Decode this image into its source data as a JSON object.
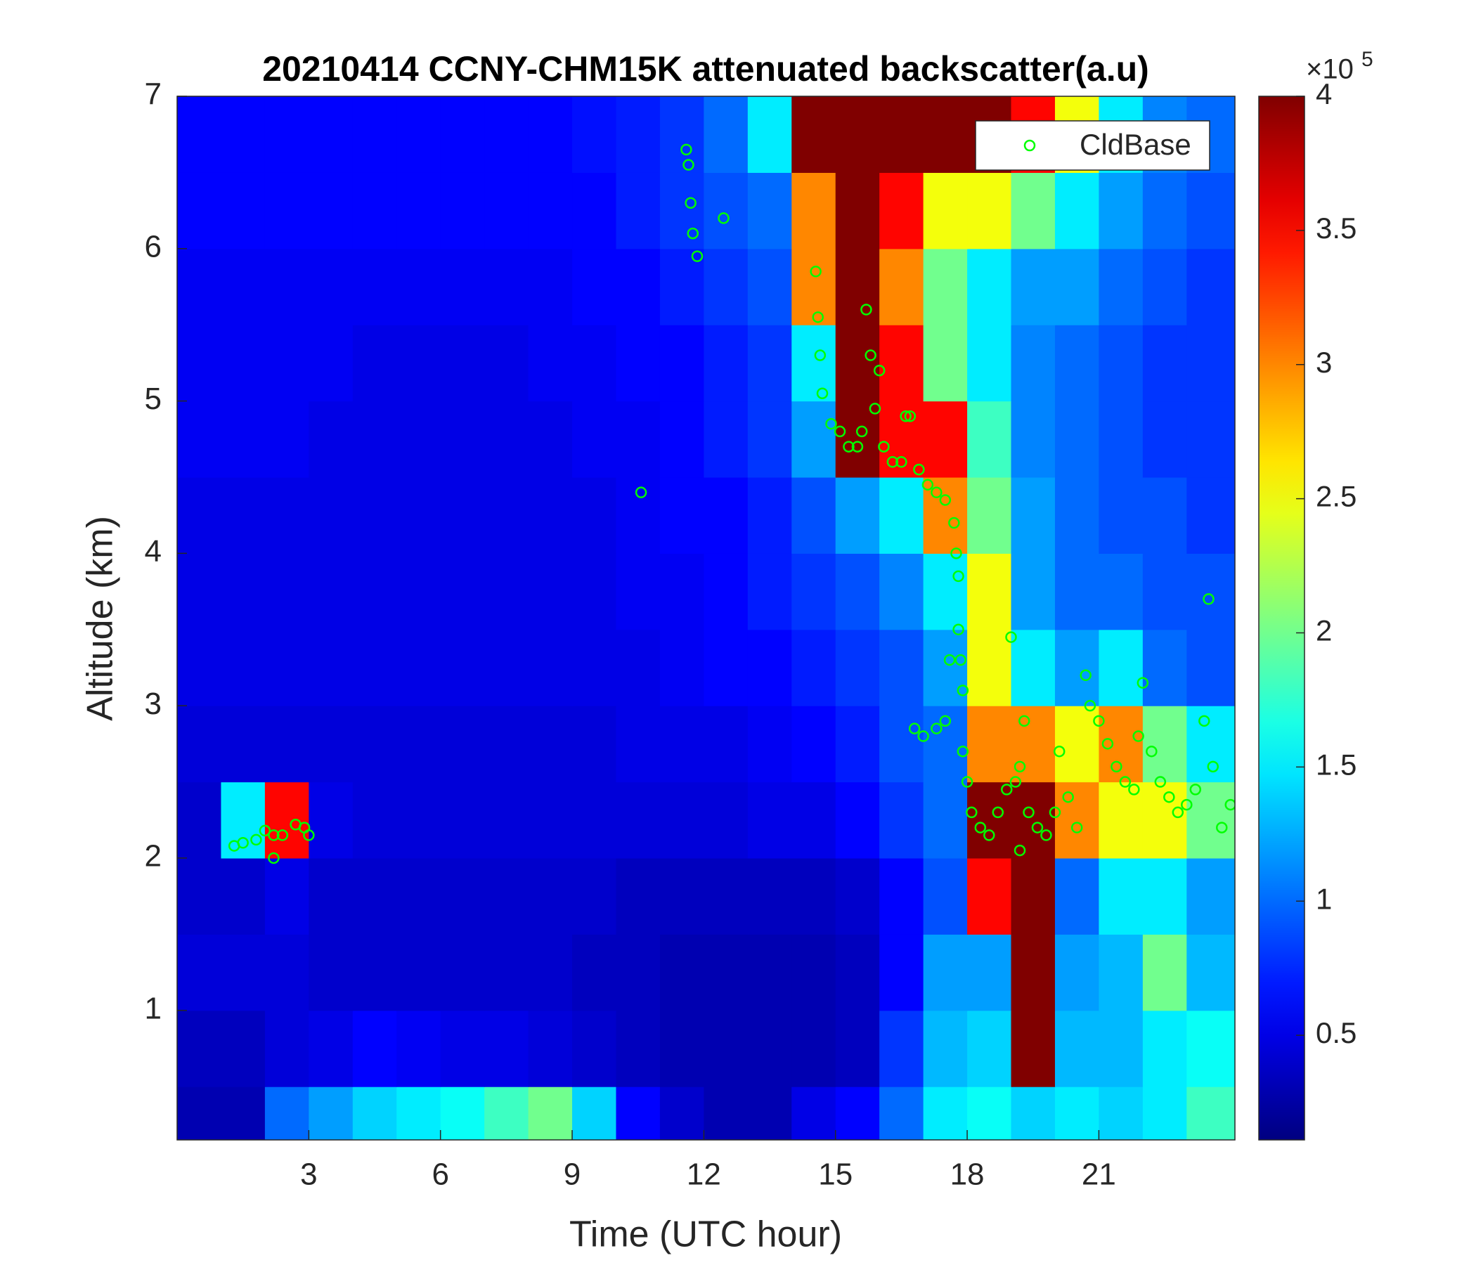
{
  "chart_data": {
    "type": "heatmap",
    "title": "20210414 CCNY-CHM15K attenuated backscatter(a.u)",
    "xlabel": "Time (UTC hour)",
    "ylabel": "Altitude (km)",
    "xlim": [
      0,
      24.1
    ],
    "ylim": [
      0.15,
      7
    ],
    "xticks": [
      3,
      6,
      9,
      12,
      15,
      18,
      21
    ],
    "yticks": [
      1,
      2,
      3,
      4,
      5,
      6,
      7
    ],
    "x": [
      0.5,
      1.5,
      2.5,
      3.5,
      4.5,
      5.5,
      6.5,
      7.5,
      8.5,
      9.5,
      10.5,
      11.5,
      12.5,
      13.5,
      14.5,
      15.5,
      16.5,
      17.5,
      18.5,
      19.5,
      20.5,
      21.5,
      22.5,
      23.5
    ],
    "y": [
      0.25,
      0.75,
      1.25,
      1.75,
      2.25,
      2.75,
      3.25,
      3.75,
      4.25,
      4.75,
      5.25,
      5.75,
      6.25,
      6.75
    ],
    "z": [
      [
        0.3,
        0.3,
        1.0,
        1.2,
        1.4,
        1.5,
        1.6,
        1.8,
        2.0,
        1.4,
        0.6,
        0.4,
        0.3,
        0.3,
        0.5,
        0.6,
        1.0,
        1.5,
        1.6,
        1.4,
        1.5,
        1.4,
        1.5,
        1.8
      ],
      [
        0.35,
        0.35,
        0.45,
        0.5,
        0.6,
        0.55,
        0.5,
        0.5,
        0.45,
        0.4,
        0.35,
        0.3,
        0.3,
        0.3,
        0.3,
        0.35,
        0.8,
        1.3,
        1.4,
        4,
        1.3,
        1.3,
        1.5,
        1.6
      ],
      [
        0.45,
        0.45,
        0.45,
        0.4,
        0.4,
        0.4,
        0.4,
        0.4,
        0.4,
        0.35,
        0.35,
        0.3,
        0.3,
        0.3,
        0.3,
        0.35,
        0.6,
        1.2,
        1.2,
        4,
        1.2,
        1.3,
        2,
        1.3
      ],
      [
        0.4,
        0.4,
        0.5,
        0.4,
        0.4,
        0.4,
        0.4,
        0.4,
        0.4,
        0.4,
        0.35,
        0.35,
        0.35,
        0.35,
        0.35,
        0.4,
        0.6,
        0.9,
        3.5,
        4,
        1,
        1.5,
        1.5,
        1.2
      ],
      [
        0.4,
        1.5,
        3.5,
        0.5,
        0.45,
        0.45,
        0.45,
        0.45,
        0.45,
        0.45,
        0.45,
        0.45,
        0.45,
        0.5,
        0.5,
        0.6,
        0.8,
        1,
        4,
        4,
        3,
        2.5,
        2.5,
        2
      ],
      [
        0.45,
        0.45,
        0.45,
        0.45,
        0.45,
        0.45,
        0.45,
        0.45,
        0.45,
        0.45,
        0.5,
        0.5,
        0.5,
        0.55,
        0.6,
        0.7,
        0.9,
        1,
        3,
        3,
        2.5,
        3,
        2,
        1.5
      ],
      [
        0.5,
        0.5,
        0.5,
        0.5,
        0.5,
        0.5,
        0.5,
        0.5,
        0.5,
        0.5,
        0.5,
        0.55,
        0.6,
        0.6,
        0.7,
        0.8,
        0.9,
        1.2,
        2.5,
        1.5,
        1.2,
        1.5,
        1,
        0.9
      ],
      [
        0.5,
        0.5,
        0.5,
        0.5,
        0.5,
        0.5,
        0.5,
        0.5,
        0.5,
        0.5,
        0.55,
        0.55,
        0.6,
        0.7,
        0.8,
        0.9,
        1.1,
        1.5,
        2.5,
        1.2,
        1,
        1,
        0.9,
        0.9
      ],
      [
        0.5,
        0.5,
        0.5,
        0.5,
        0.5,
        0.5,
        0.5,
        0.5,
        0.5,
        0.5,
        0.55,
        0.6,
        0.6,
        0.7,
        0.9,
        1.2,
        1.5,
        3,
        2,
        1.2,
        1,
        0.9,
        0.9,
        0.8
      ],
      [
        0.55,
        0.55,
        0.55,
        0.5,
        0.5,
        0.5,
        0.5,
        0.5,
        0.5,
        0.55,
        0.55,
        0.6,
        0.7,
        0.8,
        1.2,
        4,
        3.5,
        3.5,
        1.8,
        1.1,
        1,
        0.9,
        0.8,
        0.8
      ],
      [
        0.55,
        0.55,
        0.55,
        0.55,
        0.5,
        0.5,
        0.5,
        0.5,
        0.55,
        0.55,
        0.6,
        0.6,
        0.7,
        0.8,
        1.5,
        4,
        3.5,
        2,
        1.5,
        1.1,
        1,
        0.9,
        0.8,
        0.8
      ],
      [
        0.55,
        0.55,
        0.55,
        0.55,
        0.55,
        0.55,
        0.55,
        0.55,
        0.55,
        0.6,
        0.6,
        0.7,
        0.8,
        0.9,
        3,
        4,
        3,
        2,
        1.5,
        1.2,
        1.2,
        1,
        0.9,
        0.8
      ],
      [
        0.6,
        0.6,
        0.6,
        0.6,
        0.6,
        0.6,
        0.6,
        0.6,
        0.6,
        0.6,
        0.7,
        0.8,
        0.9,
        1,
        3,
        4,
        3.5,
        2.5,
        2.5,
        2,
        1.5,
        1.2,
        1,
        0.9
      ],
      [
        0.6,
        0.6,
        0.6,
        0.6,
        0.6,
        0.6,
        0.6,
        0.6,
        0.6,
        0.65,
        0.7,
        0.8,
        1,
        1.5,
        4,
        4,
        4,
        4,
        4,
        3.5,
        2.5,
        1.5,
        1.1,
        1
      ]
    ],
    "colormap": "jet",
    "clim": [
      0.11,
      4
    ],
    "cticks": [
      0.5,
      1,
      1.5,
      2,
      2.5,
      3,
      3.5,
      4
    ],
    "cmultiplier": {
      "base": "×10",
      "exponent": "5"
    },
    "legend": "upper right",
    "series": [
      {
        "name": "CldBase",
        "type": "scatter",
        "color": "#00ff00",
        "x": [
          1.3,
          1.5,
          1.8,
          2.0,
          2.2,
          2.2,
          2.4,
          2.7,
          2.9,
          3.0,
          10.57,
          11.6,
          11.65,
          11.7,
          11.75,
          11.85,
          12.45,
          14.55,
          14.6,
          14.65,
          14.7,
          14.9,
          15.1,
          15.3,
          15.5,
          15.6,
          15.7,
          15.8,
          15.9,
          16.0,
          16.1,
          16.3,
          16.5,
          16.6,
          16.7,
          16.9,
          17.1,
          17.3,
          17.5,
          17.7,
          17.75,
          17.8,
          17.8,
          17.85,
          17.9,
          17.6,
          16.8,
          17.0,
          17.3,
          17.5,
          17.9,
          18.0,
          18.1,
          18.3,
          18.5,
          18.7,
          18.9,
          19.1,
          19.2,
          19.3,
          19.4,
          19.6,
          19.8,
          19.2,
          19.0,
          20.0,
          20.1,
          20.3,
          20.5,
          20.7,
          20.8,
          21.0,
          21.2,
          21.4,
          21.6,
          21.8,
          21.9,
          22.0,
          22.2,
          22.4,
          22.6,
          22.8,
          23.0,
          23.2,
          23.4,
          23.5,
          23.6,
          23.8,
          24.0
        ],
        "y": [
          2.08,
          2.1,
          2.12,
          2.18,
          2.15,
          2.0,
          2.15,
          2.22,
          2.2,
          2.15,
          4.4,
          6.65,
          6.55,
          6.3,
          6.1,
          5.95,
          6.2,
          5.85,
          5.55,
          5.3,
          5.05,
          4.85,
          4.8,
          4.7,
          4.7,
          4.8,
          5.6,
          5.3,
          4.95,
          5.2,
          4.7,
          4.6,
          4.6,
          4.9,
          4.9,
          4.55,
          4.45,
          4.4,
          4.35,
          4.2,
          4.0,
          3.85,
          3.5,
          3.3,
          3.1,
          3.3,
          2.85,
          2.8,
          2.85,
          2.9,
          2.7,
          2.5,
          2.3,
          2.2,
          2.15,
          2.3,
          2.45,
          2.5,
          2.6,
          2.9,
          2.3,
          2.2,
          2.15,
          2.05,
          3.45,
          2.3,
          2.7,
          2.4,
          2.2,
          3.2,
          3.0,
          2.9,
          2.75,
          2.6,
          2.5,
          2.45,
          2.8,
          3.15,
          2.7,
          2.5,
          2.4,
          2.3,
          2.35,
          2.45,
          2.9,
          3.7,
          2.6,
          2.2,
          2.35
        ]
      }
    ]
  }
}
